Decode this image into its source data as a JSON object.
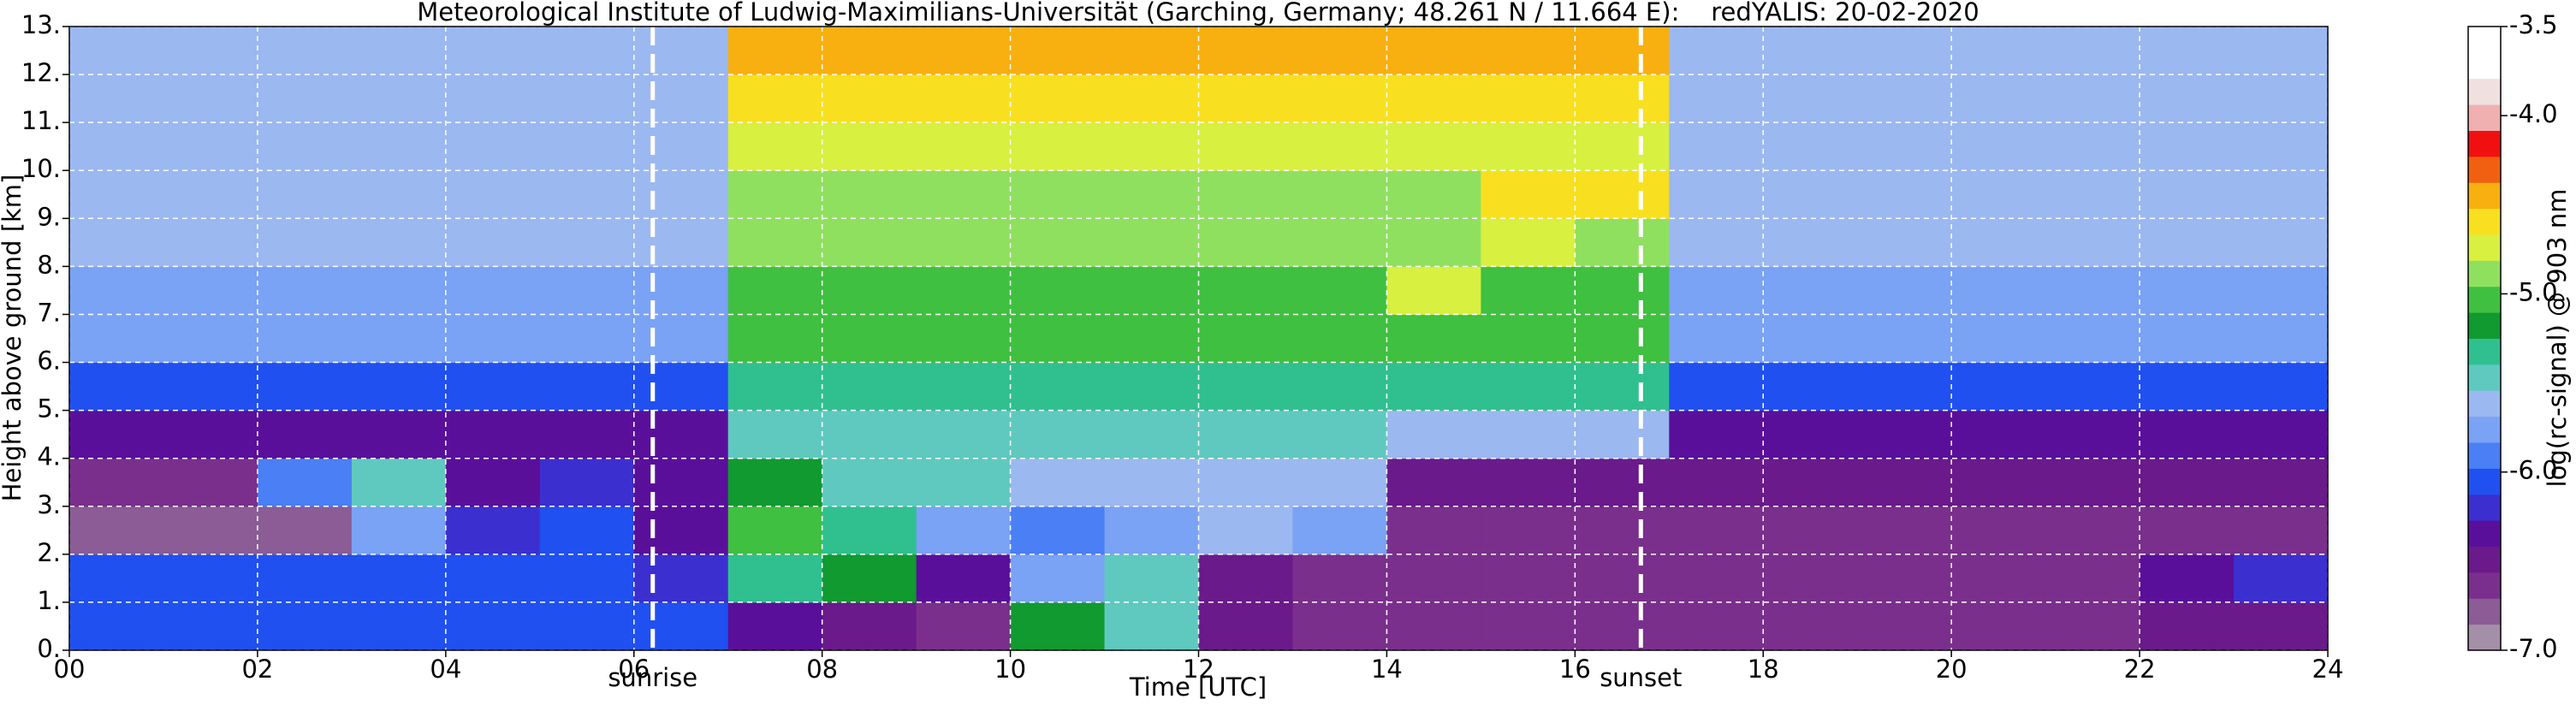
{
  "chart_data": {
    "type": "heatmap",
    "title": "Meteorological Institute of Ludwig-Maximilians-Universität (Garching, Germany; 48.261 N / 11.664 E):    redYALIS: 20-02-2020",
    "xlabel": "Time [UTC]",
    "ylabel": "Height above ground [km]",
    "xlim": [
      0,
      24
    ],
    "ylim": [
      0,
      13
    ],
    "xticks": [
      {
        "value": 0,
        "label": "00"
      },
      {
        "value": 2,
        "label": "02"
      },
      {
        "value": 4,
        "label": "04"
      },
      {
        "value": 6,
        "label": "06"
      },
      {
        "value": 8,
        "label": "08"
      },
      {
        "value": 10,
        "label": "10"
      },
      {
        "value": 12,
        "label": "12"
      },
      {
        "value": 14,
        "label": "14"
      },
      {
        "value": 16,
        "label": "16"
      },
      {
        "value": 18,
        "label": "18"
      },
      {
        "value": 20,
        "label": "20"
      },
      {
        "value": 22,
        "label": "22"
      },
      {
        "value": 24,
        "label": "24"
      }
    ],
    "yticks": [
      {
        "value": 0,
        "label": "0."
      },
      {
        "value": 1,
        "label": "1."
      },
      {
        "value": 2,
        "label": "2."
      },
      {
        "value": 3,
        "label": "3."
      },
      {
        "value": 4,
        "label": "4."
      },
      {
        "value": 5,
        "label": "5."
      },
      {
        "value": 6,
        "label": "6."
      },
      {
        "value": 7,
        "label": "7."
      },
      {
        "value": 8,
        "label": "8."
      },
      {
        "value": 9,
        "label": "9."
      },
      {
        "value": 10,
        "label": "10."
      },
      {
        "value": 11,
        "label": "11."
      },
      {
        "value": 12,
        "label": "12."
      },
      {
        "value": 13,
        "label": "13."
      }
    ],
    "grid": true,
    "xbins": [
      0,
      1,
      2,
      3,
      4,
      5,
      6,
      7,
      8,
      9,
      10,
      11,
      12,
      13,
      14,
      15,
      16,
      17,
      18,
      19,
      20,
      21,
      22,
      23,
      24
    ],
    "ybins": [
      0,
      1,
      2,
      3,
      4,
      5,
      6,
      7,
      8,
      9,
      10,
      11,
      12,
      13
    ],
    "z": [
      [
        -6.0,
        -6.0,
        -6.0,
        -6.0,
        -6.0,
        -6.0,
        -6.0,
        -6.3,
        -6.5,
        -6.6,
        -5.2,
        -5.5,
        -6.5,
        -6.6,
        -6.6,
        -6.6,
        -6.6,
        -6.6,
        -6.6,
        -6.6,
        -6.6,
        -6.6,
        -6.5,
        -6.5
      ],
      [
        -6.1,
        -6.1,
        -6.0,
        -6.0,
        -6.0,
        -6.0,
        -6.2,
        -5.3,
        -5.2,
        -6.3,
        -5.8,
        -5.4,
        -6.5,
        -6.7,
        -6.7,
        -6.7,
        -6.7,
        -6.7,
        -6.7,
        -6.7,
        -6.7,
        -6.7,
        -6.4,
        -6.2
      ],
      [
        -6.8,
        -6.8,
        -6.8,
        -5.7,
        -6.2,
        -6.0,
        -6.4,
        -5.0,
        -5.3,
        -5.8,
        -5.9,
        -5.8,
        -5.6,
        -5.8,
        -6.7,
        -6.7,
        -6.7,
        -6.7,
        -6.7,
        -6.7,
        -6.7,
        -6.7,
        -6.7,
        -6.7
      ],
      [
        -6.7,
        -6.7,
        -5.9,
        -5.5,
        -6.4,
        -6.2,
        -6.3,
        -5.2,
        -5.4,
        -5.5,
        -5.6,
        -5.6,
        -5.6,
        -5.6,
        -6.5,
        -6.5,
        -6.5,
        -6.5,
        -6.5,
        -6.5,
        -6.5,
        -6.5,
        -6.5,
        -6.5
      ],
      [
        -6.3,
        -6.3,
        -6.3,
        -6.3,
        -6.3,
        -6.3,
        -6.3,
        -5.4,
        -5.4,
        -5.4,
        -5.4,
        -5.4,
        -5.4,
        -5.4,
        -5.6,
        -5.6,
        -5.6,
        -6.3,
        -6.3,
        -6.3,
        -6.3,
        -6.3,
        -6.3,
        -6.3
      ],
      [
        -6.0,
        -6.0,
        -6.0,
        -6.0,
        -6.0,
        -6.0,
        -6.0,
        -5.3,
        -5.3,
        -5.3,
        -5.3,
        -5.3,
        -5.3,
        -5.3,
        -5.3,
        -5.3,
        -5.3,
        -6.0,
        -6.0,
        -6.0,
        -6.0,
        -6.0,
        -6.0,
        -6.0
      ],
      [
        -5.8,
        -5.8,
        -5.8,
        -5.8,
        -5.8,
        -5.8,
        -5.8,
        -5.1,
        -5.1,
        -5.1,
        -5.1,
        -5.1,
        -5.1,
        -5.0,
        -5.1,
        -5.1,
        -5.1,
        -5.8,
        -5.8,
        -5.8,
        -5.8,
        -5.8,
        -5.8,
        -5.8
      ],
      [
        -5.7,
        -5.7,
        -5.7,
        -5.7,
        -5.7,
        -5.7,
        -5.7,
        -5.0,
        -5.0,
        -5.0,
        -5.0,
        -5.0,
        -5.0,
        -5.0,
        -4.8,
        -5.0,
        -5.0,
        -5.7,
        -5.7,
        -5.7,
        -5.7,
        -5.7,
        -5.7,
        -5.7
      ],
      [
        -5.6,
        -5.6,
        -5.6,
        -5.6,
        -5.6,
        -5.6,
        -5.6,
        -4.9,
        -4.9,
        -4.9,
        -4.9,
        -4.9,
        -4.9,
        -4.9,
        -4.9,
        -4.7,
        -4.9,
        -5.6,
        -5.6,
        -5.6,
        -5.6,
        -5.6,
        -5.6,
        -5.6
      ],
      [
        -5.6,
        -5.6,
        -5.6,
        -5.6,
        -5.6,
        -5.6,
        -5.6,
        -4.9,
        -4.9,
        -4.9,
        -4.9,
        -4.9,
        -4.9,
        -4.9,
        -4.9,
        -4.6,
        -4.6,
        -5.6,
        -5.6,
        -5.6,
        -5.6,
        -5.6,
        -5.6,
        -5.6
      ],
      [
        -5.6,
        -5.6,
        -5.6,
        -5.6,
        -5.6,
        -5.6,
        -5.6,
        -4.7,
        -4.7,
        -4.7,
        -4.7,
        -4.7,
        -4.7,
        -4.7,
        -4.7,
        -4.7,
        -4.7,
        -5.6,
        -5.6,
        -5.6,
        -5.6,
        -5.6,
        -5.6,
        -5.6
      ],
      [
        -5.6,
        -5.6,
        -5.6,
        -5.6,
        -5.6,
        -5.6,
        -5.6,
        -4.6,
        -4.6,
        -4.6,
        -4.6,
        -4.6,
        -4.6,
        -4.6,
        -4.6,
        -4.6,
        -4.6,
        -5.6,
        -5.6,
        -5.6,
        -5.6,
        -5.6,
        -5.6,
        -5.6
      ],
      [
        -5.6,
        -5.6,
        -5.6,
        -5.6,
        -5.6,
        -5.6,
        -5.6,
        -4.5,
        -4.5,
        -4.5,
        -4.5,
        -4.5,
        -4.5,
        -4.5,
        -4.5,
        -4.5,
        -4.5,
        -5.6,
        -5.6,
        -5.6,
        -5.6,
        -5.6,
        -5.6,
        -5.6
      ]
    ],
    "annotations": [
      {
        "x": 6.2,
        "label": "sunrise"
      },
      {
        "x": 16.7,
        "label": "sunset"
      }
    ],
    "colorbar": {
      "label": "log(rc-signal) @ 903 nm",
      "lim": [
        -7,
        -3.5
      ],
      "ticks": [
        -3.5,
        {
          "value": -4,
          "label": "-4.0"
        },
        {
          "value": -5,
          "label": "-5.0"
        },
        {
          "value": -6,
          "label": "-6.0"
        },
        {
          "value": -7,
          "label": "-7.0"
        }
      ],
      "colors": [
        "#a48fa8",
        "#8b5c96",
        "#7a2f8c",
        "#6a1a8a",
        "#5a0f9a",
        "#3c2fd0",
        "#2050f0",
        "#4a7ff5",
        "#7aa2f5",
        "#9bb8f0",
        "#5fc9c0",
        "#30c090",
        "#109a30",
        "#40c040",
        "#90e060",
        "#d8f040",
        "#f8e020",
        "#f8b010",
        "#f06010",
        "#f01010",
        "#f0b0b0",
        "#f0e0e0",
        "#ffffff",
        "#ffffff"
      ]
    }
  }
}
